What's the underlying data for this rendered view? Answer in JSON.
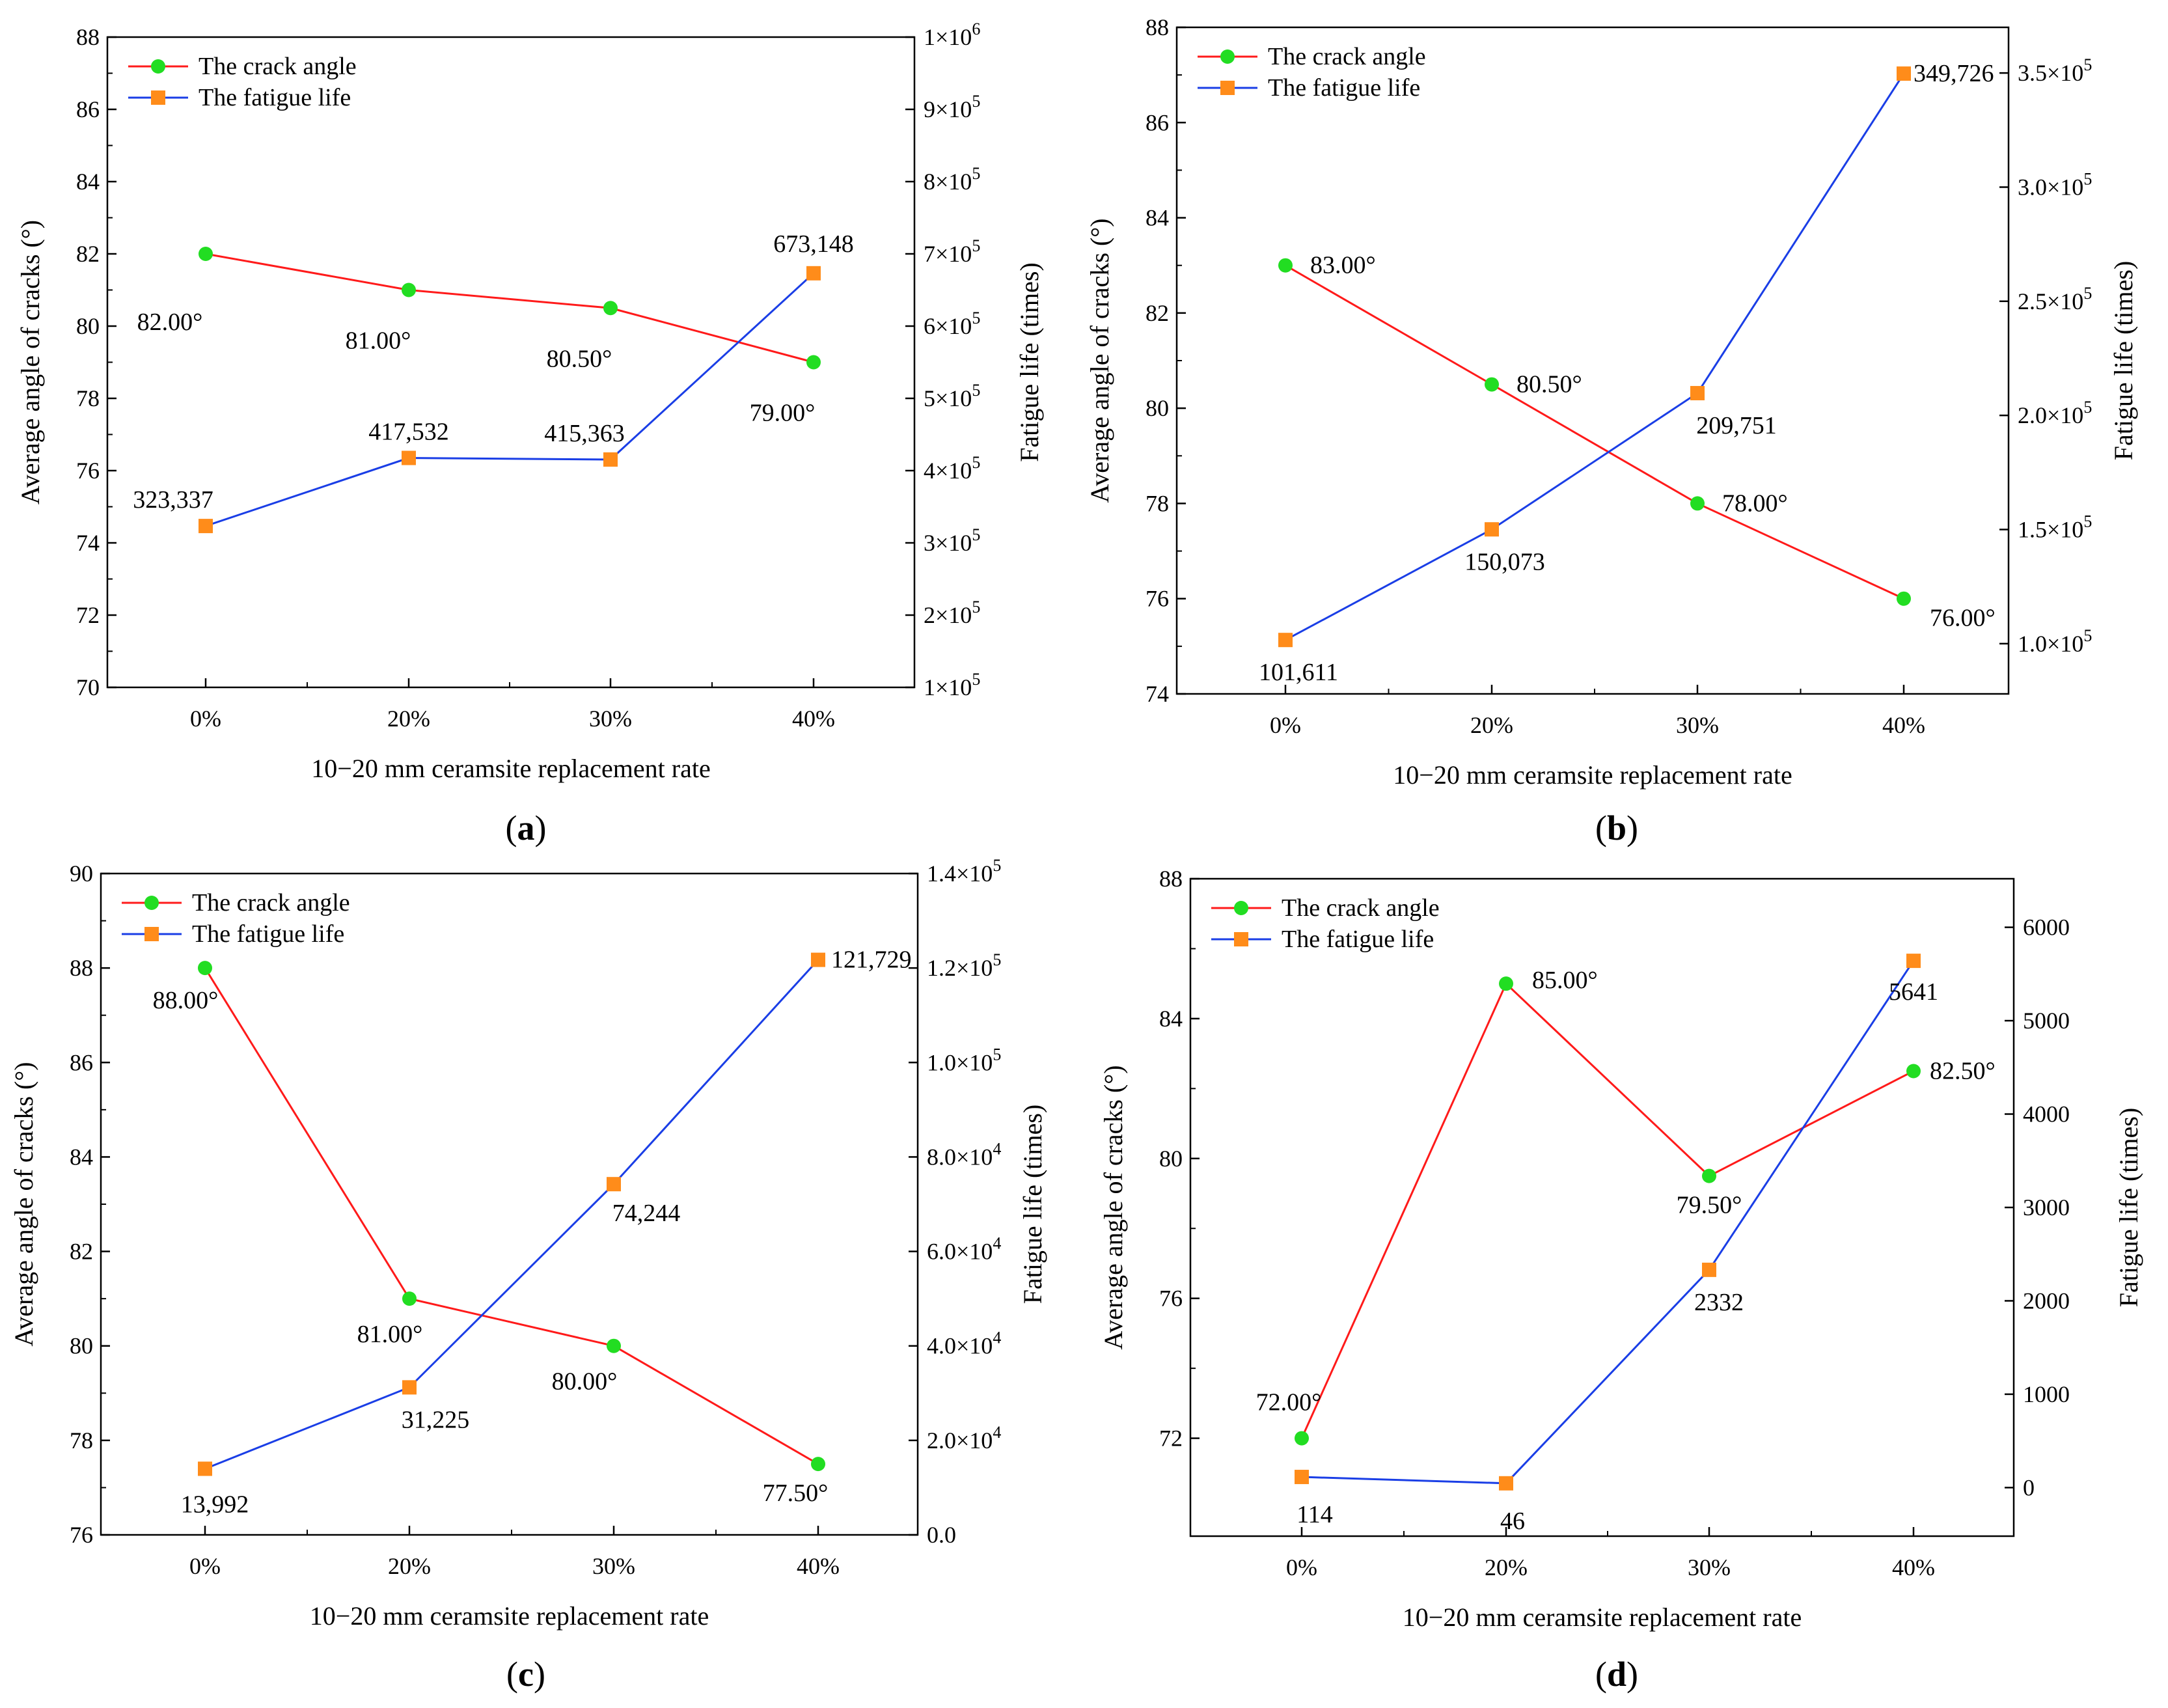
{
  "colors": {
    "angle_line": "#ff1a1a",
    "angle_marker": "#22dd22",
    "life_line": "#1a3ee6",
    "life_marker": "#ff8c1a"
  },
  "chart_data": [
    {
      "type": "line",
      "caption": "a",
      "xlabel": "10−20 mm ceramsite replacement rate",
      "ylabel": "Average angle of cracks (°)",
      "y2label": "Fatigue life (times)",
      "categories": [
        "0%",
        "20%",
        "30%",
        "40%"
      ],
      "ylim": [
        70,
        88
      ],
      "yticks": [
        70,
        72,
        74,
        76,
        78,
        80,
        82,
        84,
        86,
        88
      ],
      "y2lim": [
        100000,
        1000000
      ],
      "y2ticks": [
        {
          "v": 100000,
          "m": "1",
          "e": "5"
        },
        {
          "v": 200000,
          "m": "2",
          "e": "5"
        },
        {
          "v": 300000,
          "m": "3",
          "e": "5"
        },
        {
          "v": 400000,
          "m": "4",
          "e": "5"
        },
        {
          "v": 500000,
          "m": "5",
          "e": "5"
        },
        {
          "v": 600000,
          "m": "6",
          "e": "5"
        },
        {
          "v": 700000,
          "m": "7",
          "e": "5"
        },
        {
          "v": 800000,
          "m": "8",
          "e": "5"
        },
        {
          "v": 900000,
          "m": "9",
          "e": "5"
        },
        {
          "v": 1000000,
          "m": "1",
          "e": "6"
        }
      ],
      "series": [
        {
          "name": "The crack angle",
          "axis": "left",
          "values": [
            82.0,
            81.0,
            80.5,
            79.0
          ],
          "labels": [
            "82.00°",
            "81.00°",
            "80.50°",
            "79.00°"
          ]
        },
        {
          "name": "The fatigue life",
          "axis": "right",
          "values": [
            323337,
            417532,
            415363,
            673148
          ],
          "labels": [
            "323,337",
            "417,532",
            "415,363",
            "673,148"
          ]
        }
      ],
      "legend": [
        "The crack angle",
        "The fatigue life"
      ]
    },
    {
      "type": "line",
      "caption": "b",
      "xlabel": "10−20 mm ceramsite replacement rate",
      "ylabel": "Average angle of cracks (°)",
      "y2label": "Fatigue life (times)",
      "categories": [
        "0%",
        "20%",
        "30%",
        "40%"
      ],
      "ylim": [
        74,
        88
      ],
      "yticks": [
        74,
        76,
        78,
        80,
        82,
        84,
        86,
        88
      ],
      "y2lim": [
        78000,
        370000
      ],
      "y2ticks": [
        {
          "v": 100000,
          "m": "1.0",
          "e": "5"
        },
        {
          "v": 150000,
          "m": "1.5",
          "e": "5"
        },
        {
          "v": 200000,
          "m": "2.0",
          "e": "5"
        },
        {
          "v": 250000,
          "m": "2.5",
          "e": "5"
        },
        {
          "v": 300000,
          "m": "3.0",
          "e": "5"
        },
        {
          "v": 350000,
          "m": "3.5",
          "e": "5"
        }
      ],
      "series": [
        {
          "name": "The crack angle",
          "axis": "left",
          "values": [
            83.0,
            80.5,
            78.0,
            76.0
          ],
          "labels": [
            "83.00°",
            "80.50°",
            "78.00°",
            "76.00°"
          ]
        },
        {
          "name": "The fatigue life",
          "axis": "right",
          "values": [
            101611,
            150073,
            209751,
            349726
          ],
          "labels": [
            "101,611",
            "150,073",
            "209,751",
            "349,726"
          ]
        }
      ],
      "legend": [
        "The crack angle",
        "The fatigue life"
      ]
    },
    {
      "type": "line",
      "caption": "c",
      "xlabel": "10−20 mm ceramsite replacement rate",
      "ylabel": "Average angle of cracks (°)",
      "y2label": "Fatigue life (times)",
      "categories": [
        "0%",
        "20%",
        "30%",
        "40%"
      ],
      "ylim": [
        76,
        90
      ],
      "yticks": [
        76,
        78,
        80,
        82,
        84,
        86,
        88,
        90
      ],
      "y2lim": [
        0,
        140000
      ],
      "y2ticks": [
        {
          "v": 0,
          "plain": "0.0"
        },
        {
          "v": 20000,
          "m": "2.0",
          "e": "4"
        },
        {
          "v": 40000,
          "m": "4.0",
          "e": "4"
        },
        {
          "v": 60000,
          "m": "6.0",
          "e": "4"
        },
        {
          "v": 80000,
          "m": "8.0",
          "e": "4"
        },
        {
          "v": 100000,
          "m": "1.0",
          "e": "5"
        },
        {
          "v": 120000,
          "m": "1.2",
          "e": "5"
        },
        {
          "v": 140000,
          "m": "1.4",
          "e": "5"
        }
      ],
      "series": [
        {
          "name": "The crack angle",
          "axis": "left",
          "values": [
            88.0,
            81.0,
            80.0,
            77.5
          ],
          "labels": [
            "88.00°",
            "81.00°",
            "80.00°",
            "77.50°"
          ]
        },
        {
          "name": "The fatigue life",
          "axis": "right",
          "values": [
            13992,
            31225,
            74244,
            121729
          ],
          "labels": [
            "13,992",
            "31,225",
            "74,244",
            "121,729"
          ]
        }
      ],
      "legend": [
        "The crack angle",
        "The fatigue life"
      ]
    },
    {
      "type": "line",
      "caption": "d",
      "xlabel": "10−20 mm ceramsite replacement rate",
      "ylabel": "Average angle of cracks (°)",
      "y2label": "Fatigue life (times)",
      "categories": [
        "0%",
        "20%",
        "30%",
        "40%"
      ],
      "ylim": [
        69.2,
        88
      ],
      "yticks": [
        72,
        76,
        80,
        84,
        88
      ],
      "y2lim": [
        -520,
        6520
      ],
      "y2ticks": [
        {
          "v": 0,
          "plain": "0"
        },
        {
          "v": 1000,
          "plain": "1000"
        },
        {
          "v": 2000,
          "plain": "2000"
        },
        {
          "v": 3000,
          "plain": "3000"
        },
        {
          "v": 4000,
          "plain": "4000"
        },
        {
          "v": 5000,
          "plain": "5000"
        },
        {
          "v": 6000,
          "plain": "6000"
        }
      ],
      "series": [
        {
          "name": "The crack angle",
          "axis": "left",
          "values": [
            72.0,
            85.0,
            79.5,
            82.5
          ],
          "labels": [
            "72.00°",
            "85.00°",
            "79.50°",
            "82.50°"
          ]
        },
        {
          "name": "The fatigue life",
          "axis": "right",
          "values": [
            114,
            46,
            2332,
            5641
          ],
          "labels": [
            "114",
            "46",
            "2332",
            "5641"
          ]
        }
      ],
      "legend": [
        "The crack angle",
        "The fatigue life"
      ]
    }
  ]
}
